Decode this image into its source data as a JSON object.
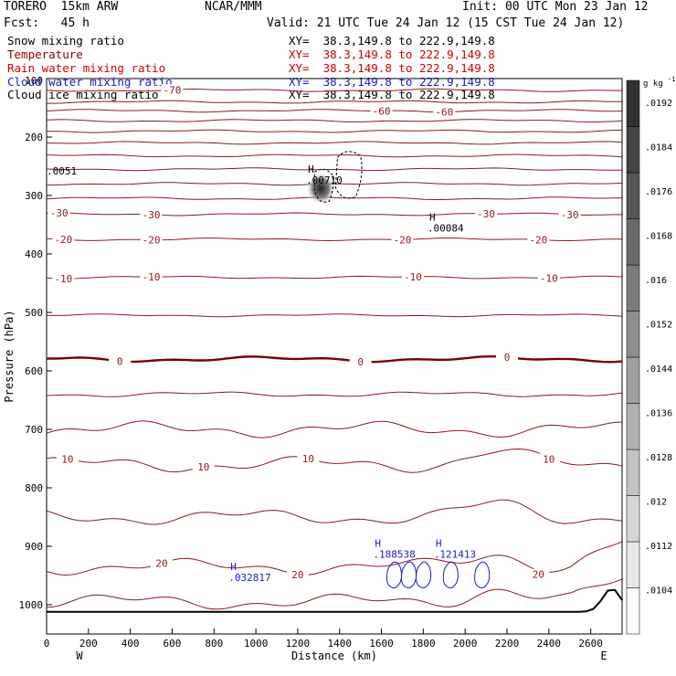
{
  "header": {
    "model": "TORERO  15km ARW",
    "center": "NCAR/MMM",
    "init": "Init: 00 UTC Mon 23 Jan 12",
    "fcst": "Fcst:   45 h",
    "valid": "Valid: 21 UTC Tue 24 Jan 12 (15 CST Tue 24 Jan 12)"
  },
  "fields": [
    {
      "label": "Snow mixing ratio",
      "color": "#000000",
      "xy": "XY=  38.3,149.8 to 222.9,149.8"
    },
    {
      "label": "Temperature",
      "color": "#8b0000",
      "xy": "XY=  38.3,149.8 to 222.9,149.8"
    },
    {
      "label": "Rain water mixing ratio",
      "color": "#cc0000",
      "xy": "XY=  38.3,149.8 to 222.9,149.8"
    },
    {
      "label": "Cloud water mixing ratio",
      "color": "#1a1acc",
      "xy": "XY=  38.3,149.8 to 222.9,149.8"
    },
    {
      "label": "Cloud ice mixing ratio",
      "color": "#000000",
      "xy": "XY=  38.3,149.8 to 222.9,149.8"
    }
  ],
  "colors": {
    "temperature": "#8b1a1a",
    "zero_isotherm": "#7a0000",
    "cloud_water": "#1a1acc",
    "cloud_ice": "#000000",
    "terrain": "#000000"
  },
  "chart_data": {
    "type": "line",
    "xlabel": "Distance (km)",
    "ylabel": "Pressure (hPa)",
    "xlim": [
      0,
      2750
    ],
    "ylim": [
      100,
      1050
    ],
    "x_ticks": [
      0,
      200,
      400,
      600,
      800,
      1000,
      1200,
      1400,
      1600,
      1800,
      2000,
      2200,
      2400,
      2600
    ],
    "y_ticks": [
      200,
      300,
      400,
      500,
      600,
      700,
      800,
      900,
      1000
    ],
    "y_top_partial_label": "100",
    "x_left_label": "W",
    "x_right_label": "E",
    "colorbar": {
      "unit": "g kg",
      "unit_exp": "-1",
      "ticks": [
        ".0192",
        ".0184",
        ".0176",
        ".0168",
        ".016",
        ".0152",
        ".0144",
        ".0136",
        ".0128",
        ".012",
        ".0112",
        ".0104"
      ],
      "tick_values": [
        0.0192,
        0.0184,
        0.0176,
        0.0168,
        0.016,
        0.0152,
        0.0144,
        0.0136,
        0.0128,
        0.012,
        0.0112,
        0.0104
      ],
      "range": [
        0.0096,
        0.0196
      ]
    },
    "isotherms": [
      {
        "p": 120,
        "label": "-70",
        "label_x": [
          600
        ]
      },
      {
        "p": 140
      },
      {
        "p": 155,
        "label": "-60",
        "label_x": [
          1600,
          1900
        ]
      },
      {
        "p": 172
      },
      {
        "p": 190
      },
      {
        "p": 210
      },
      {
        "p": 232
      },
      {
        "p": 255
      },
      {
        "p": 280
      },
      {
        "p": 305
      },
      {
        "p": 332,
        "label": "-30",
        "label_x": [
          60,
          500,
          2100,
          2500
        ]
      },
      {
        "p": 375,
        "label": "-20",
        "label_x": [
          80,
          500,
          1700,
          2350
        ]
      },
      {
        "p": 440,
        "label": "-10",
        "label_x": [
          80,
          500,
          1750,
          2400
        ]
      },
      {
        "p": 505
      },
      {
        "p": 580,
        "label": "0",
        "label_x": [
          350,
          1500,
          2200
        ],
        "bold": true
      },
      {
        "p": 640
      },
      {
        "p": 700
      },
      {
        "p": 760,
        "label": "10",
        "label_x": [
          100,
          750,
          1250,
          2400
        ]
      },
      {
        "p": 850
      },
      {
        "p": 935,
        "label": "20",
        "label_x": [
          550,
          1200,
          2350
        ]
      },
      {
        "p": 995
      }
    ],
    "annotations": [
      {
        "type": "min_marker",
        "text": ".0051",
        "x": 0,
        "p": 255
      },
      {
        "type": "max_marker",
        "symbol": "H",
        "text": ".00710",
        "x": 1240,
        "p": 270
      },
      {
        "type": "max_marker",
        "symbol": "H",
        "text": ".00084",
        "x": 1820,
        "p": 352
      },
      {
        "type": "max_marker",
        "symbol": "H",
        "text": ".188538",
        "x": 1560,
        "p": 910
      },
      {
        "type": "max_marker",
        "symbol": "H",
        "text": ".121413",
        "x": 1850,
        "p": 910
      },
      {
        "type": "max_marker",
        "symbol": "H",
        "text": ".032817",
        "x": 870,
        "p": 950
      }
    ]
  }
}
